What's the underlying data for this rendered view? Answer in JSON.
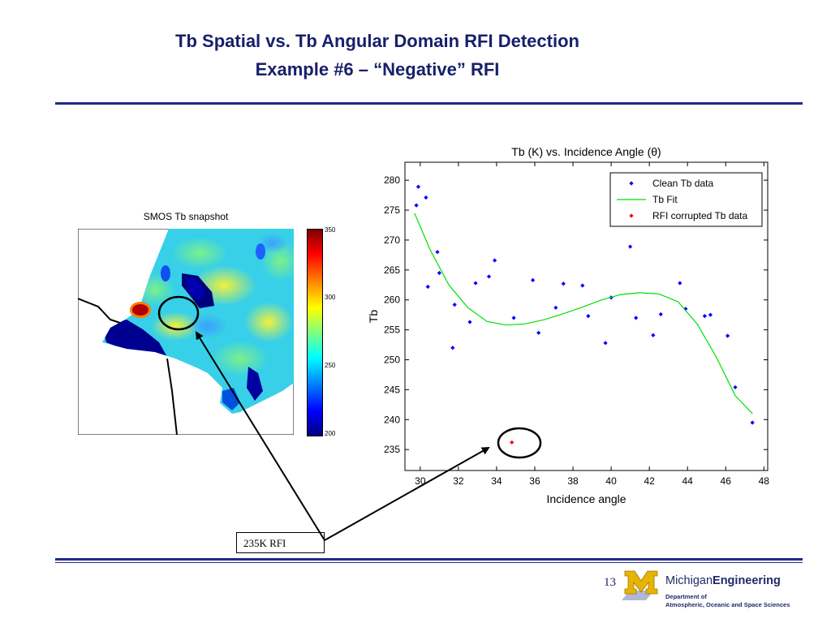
{
  "slide": {
    "title_line1": "Tb Spatial vs. Tb Angular Domain RFI Detection",
    "title_line2": "Example #6 – “Negative” RFI",
    "page_number": "13",
    "callout": "235K RFI"
  },
  "snapshot": {
    "title": "SMOS Tb snapshot",
    "colorbar_ticks": [
      "350",
      "300",
      "250",
      "200"
    ],
    "colorbar_range": [
      200,
      350
    ]
  },
  "logo": {
    "name_part1": "Michigan",
    "name_part2": "Engineering",
    "dept_line1": "Department of",
    "dept_line2": "Atmospheric, Oceanic and Space Sciences"
  },
  "chart_data": {
    "type": "scatter",
    "title": "Tb (K) vs. Incidence Angle (θ)",
    "xlabel": "Incidence angle",
    "ylabel": "Tb",
    "xlim": [
      29.2,
      48.2
    ],
    "ylim": [
      231.5,
      283
    ],
    "xticks": [
      30,
      32,
      34,
      36,
      38,
      40,
      42,
      44,
      46,
      48
    ],
    "yticks": [
      235,
      240,
      245,
      250,
      255,
      260,
      265,
      270,
      275,
      280
    ],
    "legend_placement": "top-right",
    "grid": false,
    "colors": {
      "clean": "#0000ff",
      "fit": "#00e000",
      "rfi": "#ff0000"
    },
    "series": [
      {
        "name": "Clean Tb data",
        "style": "points",
        "x": [
          29.8,
          29.9,
          30.3,
          30.4,
          30.9,
          31.0,
          31.7,
          31.8,
          32.6,
          32.9,
          33.6,
          33.9,
          34.9,
          35.9,
          36.2,
          37.1,
          37.5,
          38.5,
          38.8,
          39.7,
          40.0,
          41.0,
          41.3,
          42.2,
          42.6,
          43.6,
          43.9,
          44.9,
          45.2,
          46.1,
          46.5,
          47.4
        ],
        "y": [
          275.8,
          278.9,
          277.1,
          262.2,
          268.0,
          264.5,
          252.0,
          259.2,
          256.3,
          262.8,
          263.9,
          266.6,
          257.0,
          263.3,
          254.5,
          258.7,
          262.7,
          262.4,
          257.3,
          252.8,
          260.4,
          268.9,
          257.0,
          254.1,
          257.6,
          262.8,
          258.5,
          257.3,
          257.5,
          254.0,
          245.4,
          239.5
        ]
      },
      {
        "name": "Tb Fit",
        "style": "line",
        "x": [
          29.7,
          30.5,
          31.5,
          32.5,
          33.5,
          34.5,
          35.5,
          36.5,
          37.5,
          38.5,
          39.5,
          40.5,
          41.5,
          42.5,
          43.5,
          44.5,
          45.5,
          46.5,
          47.4
        ],
        "y": [
          274.5,
          268.5,
          262.5,
          258.7,
          256.4,
          255.8,
          256.0,
          256.7,
          257.7,
          258.8,
          260.0,
          260.9,
          261.2,
          261.0,
          259.7,
          256.0,
          250.5,
          244.0,
          241.0
        ]
      },
      {
        "name": "RFI corrupted Tb data",
        "style": "points",
        "x": [
          34.8
        ],
        "y": [
          236.2
        ]
      }
    ]
  }
}
